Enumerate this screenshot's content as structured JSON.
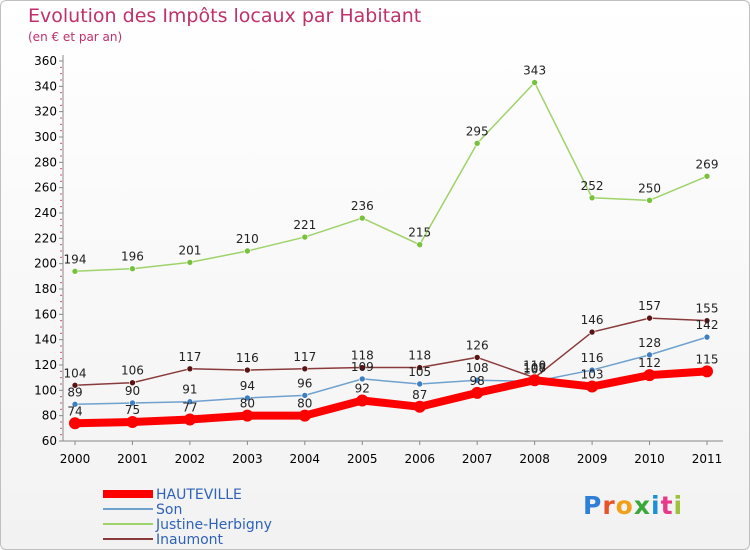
{
  "header": {
    "title": "Evolution des Impôts locaux par Habitant",
    "subtitle": "(en € et par an)"
  },
  "logo": {
    "text": "Proxiti",
    "colors": [
      "#2f7ed8",
      "#e8542a",
      "#f0a01a",
      "#3aa83a",
      "#1c8fd6",
      "#e83a8a",
      "#9cc23a"
    ]
  },
  "chart_data": {
    "type": "line",
    "x": [
      "2000",
      "2001",
      "2002",
      "2003",
      "2004",
      "2005",
      "2006",
      "2007",
      "2008",
      "2009",
      "2010",
      "2011"
    ],
    "ylim": [
      60,
      360
    ],
    "yticks": [
      60,
      80,
      100,
      120,
      140,
      160,
      180,
      200,
      220,
      240,
      260,
      280,
      300,
      320,
      340,
      360
    ],
    "grid": false,
    "legend_position": "bottom-left",
    "series": [
      {
        "name": "Justine-Herbigny",
        "color": "#9ed36a",
        "marker": "#77c23c",
        "width": 1.5,
        "values": [
          194,
          196,
          201,
          210,
          221,
          236,
          215,
          295,
          343,
          252,
          250,
          269
        ]
      },
      {
        "name": "Inaumont",
        "color": "#8a3a3a",
        "marker": "#5a1414",
        "width": 1.5,
        "values": [
          104,
          106,
          117,
          116,
          117,
          118,
          118,
          126,
          110,
          146,
          157,
          155
        ]
      },
      {
        "name": "Son",
        "color": "#6fa1cf",
        "marker": "#3f7fc0",
        "width": 1.5,
        "values": [
          89,
          90,
          91,
          94,
          96,
          109,
          105,
          108,
          107,
          116,
          128,
          142
        ],
        "labels": [
          "89",
          "90",
          "91",
          "94",
          "96",
          "109",
          "105",
          "108",
          "107",
          "116",
          "128",
          "142"
        ]
      },
      {
        "name": "HAUTEVILLE",
        "color": "#ff0000",
        "marker": "#ff0000",
        "width": 8,
        "values": [
          74,
          75,
          77,
          80,
          80,
          92,
          87,
          98,
          108,
          103,
          112,
          115
        ]
      }
    ],
    "legend_order": [
      "HAUTEVILLE",
      "Son",
      "Justine-Herbigny",
      "Inaumont"
    ]
  }
}
